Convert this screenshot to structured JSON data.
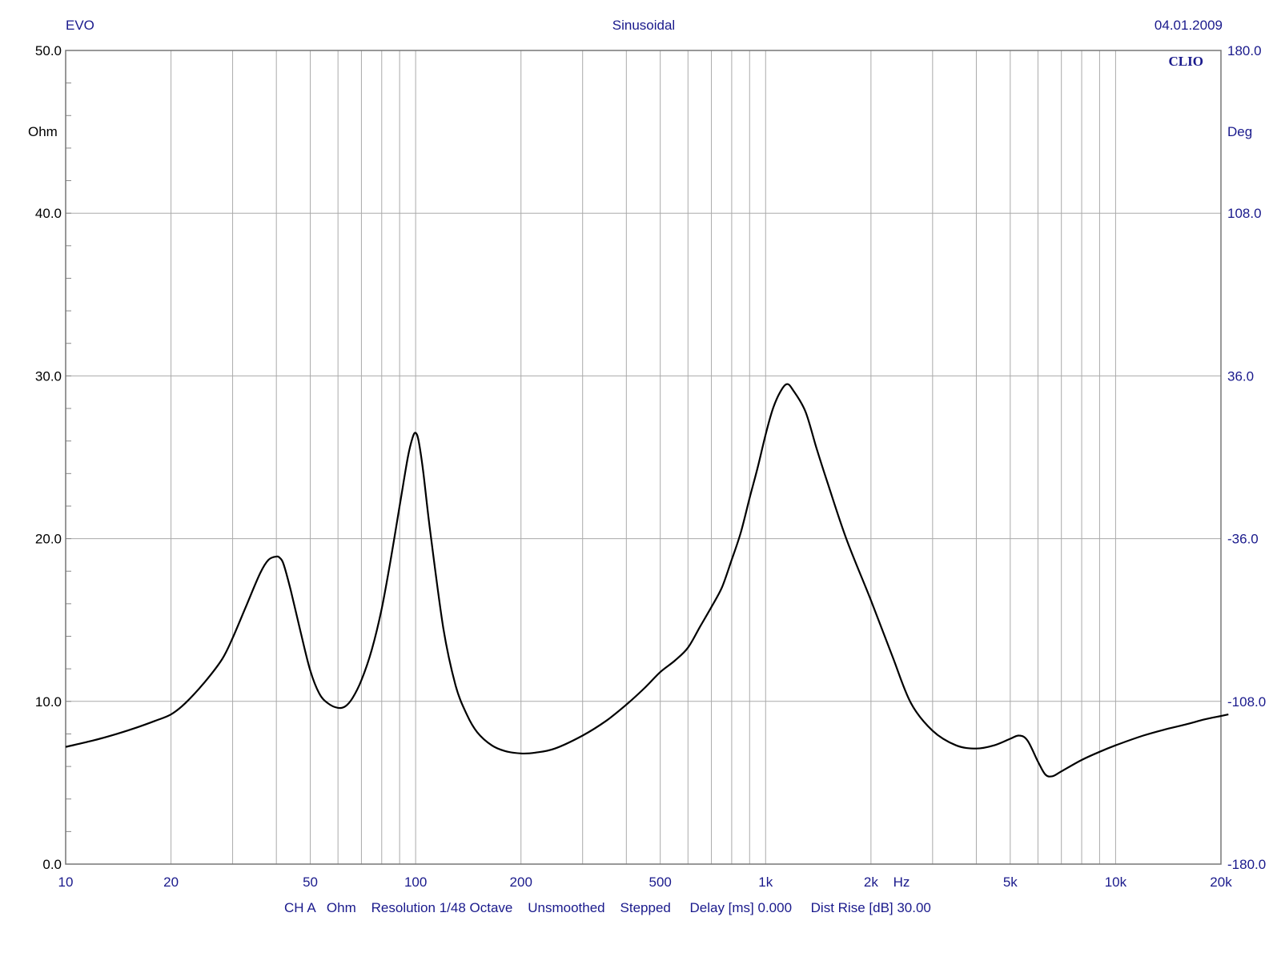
{
  "header": {
    "left": "EVO",
    "center": "Sinusoidal",
    "right": "04.01.2009",
    "logo": "CLIO"
  },
  "footer": {
    "text": "CH A   Ohm    Resolution 1/48 Octave    Unsmoothed    Stepped     Delay [ms] 0.000     Dist Rise [dB] 30.00"
  },
  "colors": {
    "curve": "#000000",
    "axis_text": "#1a1a8c",
    "grid": "#aaaaaa",
    "frame": "#777777"
  },
  "chart_data": {
    "type": "line",
    "title": "Sinusoidal",
    "x_scale": "log",
    "xlim": [
      10,
      20000
    ],
    "xlabel": "Hz",
    "x_ticks": [
      {
        "value": 10,
        "label": "10"
      },
      {
        "value": 20,
        "label": "20"
      },
      {
        "value": 50,
        "label": "50"
      },
      {
        "value": 100,
        "label": "100"
      },
      {
        "value": 200,
        "label": "200"
      },
      {
        "value": 500,
        "label": "500"
      },
      {
        "value": 1000,
        "label": "1k"
      },
      {
        "value": 2000,
        "label": "2k"
      },
      {
        "value": 5000,
        "label": "5k"
      },
      {
        "value": 10000,
        "label": "10k"
      },
      {
        "value": 20000,
        "label": "20k"
      }
    ],
    "ylim": [
      0,
      50
    ],
    "ylabel": "Ohm",
    "y_ticks": [
      "0.0",
      "10.0",
      "20.0",
      "30.0",
      "40.0",
      "50.0"
    ],
    "y2lim": [
      -180,
      180
    ],
    "y2label": "Deg",
    "y2_ticks": [
      "-180.0",
      "-108.0",
      "-36.0",
      "36.0",
      "108.0",
      "180.0"
    ],
    "grid": true,
    "series": [
      {
        "unit": "Ohm",
        "x": [
          10,
          12,
          14,
          16,
          18,
          20,
          22,
          25,
          28,
          30,
          33,
          36,
          38,
          40,
          41,
          42,
          44,
          47,
          50,
          53,
          56,
          60,
          63,
          66,
          70,
          75,
          80,
          85,
          90,
          95,
          98,
          100,
          102,
          105,
          110,
          120,
          130,
          140,
          150,
          165,
          180,
          200,
          220,
          250,
          300,
          350,
          400,
          450,
          500,
          550,
          600,
          650,
          700,
          750,
          800,
          850,
          900,
          950,
          1000,
          1050,
          1100,
          1150,
          1200,
          1300,
          1400,
          1500,
          1700,
          2000,
          2300,
          2600,
          3000,
          3500,
          4000,
          4500,
          5000,
          5300,
          5600,
          6000,
          6300,
          6600,
          7000,
          8000,
          9000,
          10000,
          12000,
          14000,
          16000,
          18000,
          20000,
          21000
        ],
        "y": [
          7.2,
          7.6,
          8.0,
          8.4,
          8.8,
          9.2,
          9.9,
          11.2,
          12.6,
          13.9,
          16.0,
          17.9,
          18.7,
          18.9,
          18.8,
          18.4,
          16.8,
          14.2,
          11.9,
          10.5,
          9.9,
          9.6,
          9.7,
          10.2,
          11.3,
          13.2,
          15.7,
          18.8,
          22.0,
          25.0,
          26.2,
          26.5,
          26.0,
          24.2,
          20.5,
          14.5,
          11.0,
          9.2,
          8.1,
          7.3,
          6.95,
          6.8,
          6.85,
          7.1,
          7.9,
          8.8,
          9.8,
          10.8,
          11.8,
          12.5,
          13.3,
          14.6,
          15.8,
          17.0,
          18.7,
          20.4,
          22.5,
          24.4,
          26.4,
          28.0,
          29.0,
          29.5,
          29.1,
          27.8,
          25.5,
          23.5,
          20.0,
          16.2,
          12.8,
          9.9,
          8.2,
          7.3,
          7.1,
          7.3,
          7.7,
          7.9,
          7.6,
          6.3,
          5.5,
          5.4,
          5.7,
          6.4,
          6.9,
          7.3,
          7.9,
          8.3,
          8.6,
          8.9,
          9.1,
          9.2
        ]
      }
    ]
  }
}
